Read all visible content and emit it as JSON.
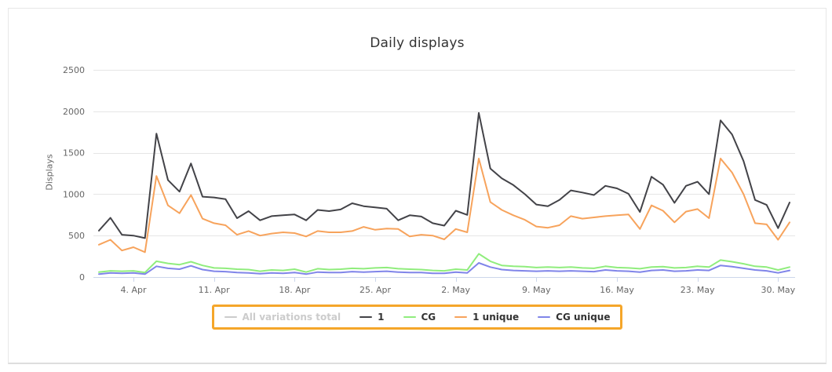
{
  "chart_data": {
    "type": "line",
    "title": "Daily displays",
    "xlabel": "",
    "ylabel": "Displays",
    "ylim": [
      0,
      2500
    ],
    "y_ticks": [
      0,
      500,
      1000,
      1500,
      2000,
      2500
    ],
    "x_tick_labels": [
      "4. Apr",
      "11. Apr",
      "18. Apr",
      "25. Apr",
      "2. May",
      "9. May",
      "16. May",
      "23. May",
      "30. May"
    ],
    "x_tick_indices": [
      3,
      10,
      17,
      24,
      31,
      38,
      45,
      52,
      59
    ],
    "n_points": 61,
    "grid": true,
    "legend_position": "bottom",
    "series": [
      {
        "name": "All variations total",
        "color": "#7cb5ec",
        "visible": false,
        "values": []
      },
      {
        "name": "1",
        "color": "#434348",
        "visible": true,
        "values": [
          560,
          715,
          510,
          500,
          470,
          1730,
          1170,
          1030,
          1370,
          970,
          960,
          940,
          710,
          795,
          685,
          735,
          745,
          755,
          685,
          810,
          795,
          815,
          890,
          855,
          840,
          825,
          685,
          745,
          730,
          650,
          620,
          800,
          750,
          1980,
          1310,
          1190,
          1110,
          1000,
          875,
          855,
          930,
          1045,
          1020,
          990,
          1100,
          1070,
          1005,
          785,
          1210,
          1115,
          895,
          1100,
          1150,
          1000,
          1890,
          1720,
          1400,
          930,
          870,
          590,
          900
        ]
      },
      {
        "name": "CG",
        "color": "#90ed7d",
        "visible": true,
        "values": [
          60,
          75,
          70,
          75,
          55,
          190,
          165,
          150,
          185,
          140,
          110,
          105,
          95,
          90,
          70,
          85,
          80,
          95,
          60,
          100,
          90,
          95,
          105,
          100,
          110,
          115,
          100,
          95,
          90,
          80,
          75,
          95,
          85,
          280,
          190,
          140,
          130,
          125,
          115,
          120,
          115,
          120,
          110,
          105,
          130,
          115,
          110,
          100,
          120,
          125,
          110,
          115,
          130,
          120,
          205,
          185,
          160,
          130,
          120,
          85,
          120
        ]
      },
      {
        "name": "1 unique",
        "color": "#f7a35c",
        "visible": true,
        "values": [
          390,
          450,
          320,
          360,
          300,
          1220,
          865,
          770,
          990,
          705,
          650,
          625,
          510,
          555,
          500,
          525,
          540,
          530,
          490,
          555,
          540,
          540,
          555,
          605,
          570,
          585,
          580,
          490,
          510,
          500,
          455,
          580,
          540,
          1430,
          905,
          810,
          745,
          690,
          610,
          595,
          625,
          735,
          705,
          720,
          735,
          745,
          755,
          580,
          865,
          800,
          660,
          790,
          820,
          710,
          1430,
          1260,
          1000,
          650,
          635,
          450,
          660
        ]
      },
      {
        "name": "CG unique",
        "color": "#8085e9",
        "visible": true,
        "values": [
          35,
          50,
          45,
          50,
          35,
          130,
          105,
          95,
          135,
          90,
          70,
          65,
          55,
          50,
          40,
          50,
          45,
          55,
          35,
          60,
          55,
          55,
          65,
          60,
          65,
          70,
          60,
          55,
          55,
          45,
          45,
          60,
          50,
          170,
          120,
          90,
          80,
          75,
          70,
          75,
          70,
          75,
          70,
          65,
          85,
          75,
          70,
          60,
          80,
          85,
          70,
          75,
          85,
          80,
          140,
          125,
          105,
          85,
          75,
          50,
          80
        ]
      }
    ]
  },
  "legend": {
    "highlight_color": "#f5a62a",
    "items": [
      {
        "label": "All variations total",
        "color": "#cccccc",
        "disabled": true
      },
      {
        "label": "1",
        "color": "#434348",
        "disabled": false
      },
      {
        "label": "CG",
        "color": "#90ed7d",
        "disabled": false
      },
      {
        "label": "1 unique",
        "color": "#f7a35c",
        "disabled": false
      },
      {
        "label": "CG unique",
        "color": "#8085e9",
        "disabled": false
      }
    ]
  },
  "colors": {
    "title": "#333333",
    "tick_label": "#666666",
    "grid": "#e6e6e6",
    "axis_line": "#ccd6eb",
    "card_border": "#e7e7e7"
  }
}
